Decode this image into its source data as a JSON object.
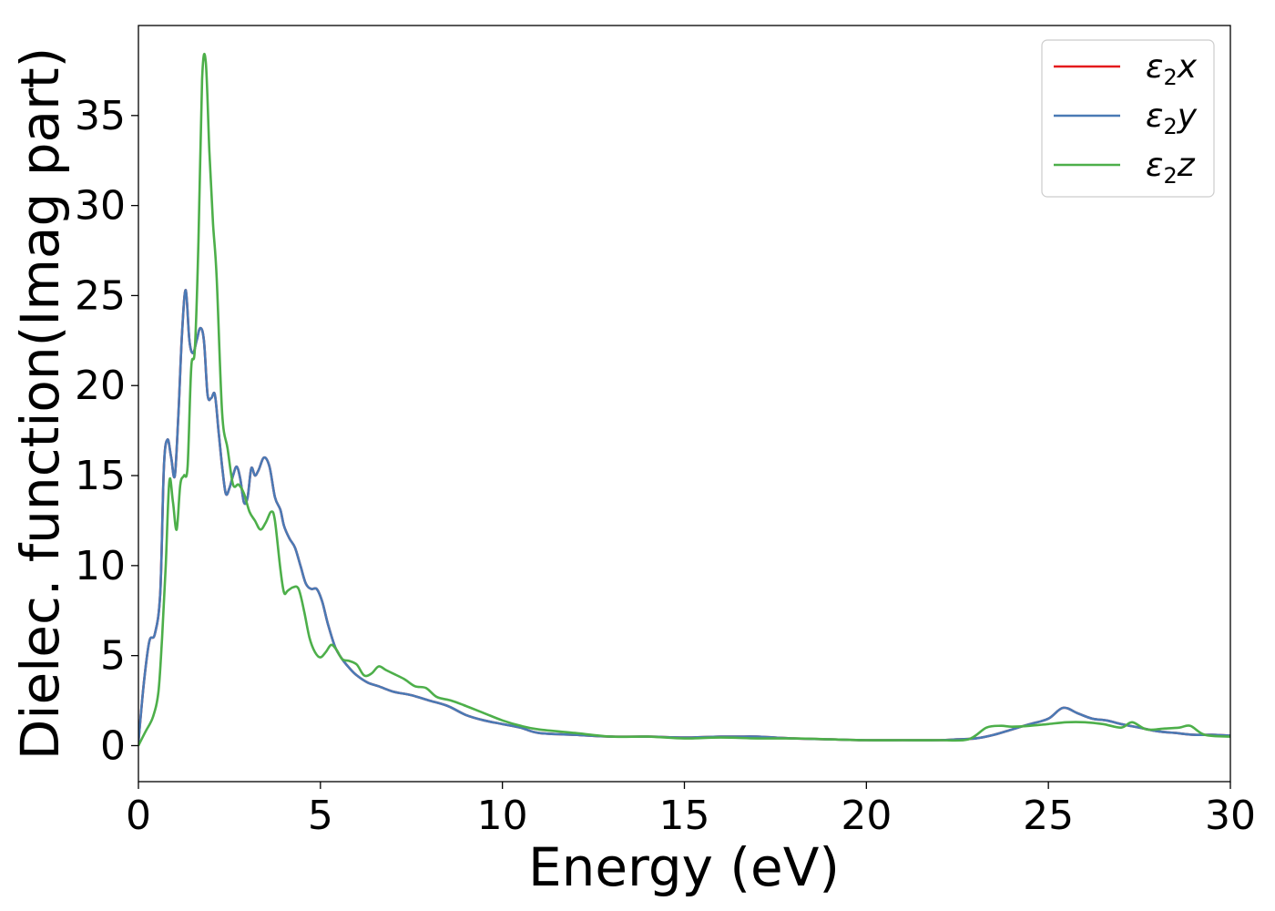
{
  "chart_data": {
    "type": "line",
    "xlabel": "Energy (eV)",
    "ylabel": "Dielec. function(Imag part)",
    "xlim": [
      0,
      30
    ],
    "ylim": [
      -2,
      40
    ],
    "xticks": [
      "0",
      "5",
      "10",
      "15",
      "20",
      "25",
      "30"
    ],
    "yticks": [
      "0",
      "5",
      "10",
      "15",
      "20",
      "25",
      "30",
      "35"
    ],
    "grid": false,
    "legend_position": "top-right",
    "series": [
      {
        "name": "ε2x",
        "base": "ε",
        "sub": "2",
        "var": "x",
        "color": "#e41a1c",
        "x": [
          0,
          0.15,
          0.3,
          0.45,
          0.6,
          0.7,
          0.8,
          0.9,
          1.0,
          1.1,
          1.2,
          1.3,
          1.4,
          1.5,
          1.6,
          1.7,
          1.8,
          1.9,
          2.0,
          2.1,
          2.2,
          2.3,
          2.4,
          2.5,
          2.6,
          2.7,
          2.8,
          2.9,
          3.0,
          3.1,
          3.2,
          3.3,
          3.45,
          3.6,
          3.75,
          3.9,
          4.0,
          4.15,
          4.3,
          4.45,
          4.6,
          4.75,
          4.9,
          5.05,
          5.2,
          5.4,
          5.6,
          5.8,
          6.0,
          6.3,
          6.6,
          7.0,
          7.5,
          8.0,
          8.5,
          9.0,
          9.5,
          10.0,
          10.5,
          11.0,
          12.0,
          13.0,
          14.0,
          15.0,
          16.0,
          16.5,
          17.0,
          18.0,
          19.0,
          20.0,
          21.0,
          22.0,
          22.5,
          23.0,
          23.5,
          24.0,
          24.5,
          25.0,
          25.4,
          25.8,
          26.2,
          26.6,
          27.0,
          27.5,
          28.0,
          28.5,
          29.0,
          29.5,
          30.0
        ],
        "values": [
          0.2,
          3.5,
          5.8,
          6.2,
          8.5,
          15.5,
          17.0,
          16.0,
          15.0,
          18.5,
          23.0,
          25.3,
          22.5,
          21.8,
          22.5,
          23.2,
          22.5,
          19.5,
          19.3,
          19.5,
          17.5,
          15.5,
          14.0,
          14.3,
          15.0,
          15.5,
          14.8,
          13.5,
          13.8,
          15.4,
          15.0,
          15.3,
          16.0,
          15.5,
          13.8,
          13.1,
          12.2,
          11.5,
          11.0,
          10.0,
          9.0,
          8.7,
          8.7,
          8.0,
          6.8,
          5.5,
          4.8,
          4.3,
          3.9,
          3.5,
          3.3,
          3.0,
          2.8,
          2.5,
          2.2,
          1.7,
          1.4,
          1.2,
          1.0,
          0.7,
          0.6,
          0.5,
          0.5,
          0.45,
          0.5,
          0.5,
          0.5,
          0.4,
          0.35,
          0.3,
          0.3,
          0.3,
          0.35,
          0.4,
          0.6,
          0.9,
          1.2,
          1.5,
          2.1,
          1.8,
          1.5,
          1.4,
          1.2,
          1.0,
          0.8,
          0.7,
          0.6,
          0.6,
          0.55
        ]
      },
      {
        "name": "ε2y",
        "base": "ε",
        "sub": "2",
        "var": "y",
        "color": "#4a7ab5",
        "x": [
          0,
          0.15,
          0.3,
          0.45,
          0.6,
          0.7,
          0.8,
          0.9,
          1.0,
          1.1,
          1.2,
          1.3,
          1.4,
          1.5,
          1.6,
          1.7,
          1.8,
          1.9,
          2.0,
          2.1,
          2.2,
          2.3,
          2.4,
          2.5,
          2.6,
          2.7,
          2.8,
          2.9,
          3.0,
          3.1,
          3.2,
          3.3,
          3.45,
          3.6,
          3.75,
          3.9,
          4.0,
          4.15,
          4.3,
          4.45,
          4.6,
          4.75,
          4.9,
          5.05,
          5.2,
          5.4,
          5.6,
          5.8,
          6.0,
          6.3,
          6.6,
          7.0,
          7.5,
          8.0,
          8.5,
          9.0,
          9.5,
          10.0,
          10.5,
          11.0,
          12.0,
          13.0,
          14.0,
          15.0,
          16.0,
          16.5,
          17.0,
          18.0,
          19.0,
          20.0,
          21.0,
          22.0,
          22.5,
          23.0,
          23.5,
          24.0,
          24.5,
          25.0,
          25.4,
          25.8,
          26.2,
          26.6,
          27.0,
          27.5,
          28.0,
          28.5,
          29.0,
          29.5,
          30.0
        ],
        "values": [
          0.2,
          3.5,
          5.8,
          6.2,
          8.5,
          15.5,
          17.0,
          16.0,
          15.0,
          18.5,
          23.0,
          25.3,
          22.5,
          21.8,
          22.5,
          23.2,
          22.5,
          19.5,
          19.3,
          19.5,
          17.5,
          15.5,
          14.0,
          14.3,
          15.0,
          15.5,
          14.8,
          13.5,
          13.8,
          15.4,
          15.0,
          15.3,
          16.0,
          15.5,
          13.8,
          13.1,
          12.2,
          11.5,
          11.0,
          10.0,
          9.0,
          8.7,
          8.7,
          8.0,
          6.8,
          5.5,
          4.8,
          4.3,
          3.9,
          3.5,
          3.3,
          3.0,
          2.8,
          2.5,
          2.2,
          1.7,
          1.4,
          1.2,
          1.0,
          0.7,
          0.6,
          0.5,
          0.5,
          0.45,
          0.5,
          0.5,
          0.5,
          0.4,
          0.35,
          0.3,
          0.3,
          0.3,
          0.35,
          0.4,
          0.6,
          0.9,
          1.2,
          1.5,
          2.1,
          1.8,
          1.5,
          1.4,
          1.2,
          1.0,
          0.8,
          0.7,
          0.6,
          0.6,
          0.55
        ]
      },
      {
        "name": "ε2z",
        "base": "ε",
        "sub": "2",
        "var": "z",
        "color": "#4daf4a",
        "x": [
          0,
          0.2,
          0.4,
          0.55,
          0.65,
          0.75,
          0.85,
          0.95,
          1.05,
          1.15,
          1.25,
          1.35,
          1.45,
          1.55,
          1.65,
          1.75,
          1.85,
          1.95,
          2.05,
          2.15,
          2.3,
          2.45,
          2.6,
          2.75,
          2.9,
          3.05,
          3.2,
          3.35,
          3.5,
          3.65,
          3.75,
          3.9,
          4.0,
          4.1,
          4.25,
          4.4,
          4.55,
          4.7,
          4.85,
          5.0,
          5.15,
          5.3,
          5.45,
          5.6,
          5.8,
          6.0,
          6.2,
          6.4,
          6.6,
          6.8,
          7.0,
          7.3,
          7.6,
          7.9,
          8.2,
          8.6,
          9.0,
          9.5,
          10.0,
          10.5,
          11.0,
          12.0,
          13.0,
          14.0,
          15.0,
          16.0,
          17.0,
          18.0,
          19.0,
          20.0,
          21.0,
          22.0,
          22.8,
          23.3,
          23.7,
          24.0,
          24.5,
          25.0,
          25.5,
          26.0,
          26.5,
          27.0,
          27.3,
          27.7,
          28.2,
          28.6,
          28.9,
          29.3,
          30.0
        ],
        "values": [
          0.0,
          0.8,
          1.6,
          3.0,
          6.0,
          10.0,
          14.7,
          13.5,
          12.0,
          14.5,
          15.0,
          15.5,
          21.0,
          22.0,
          28.0,
          37.0,
          38.0,
          33.0,
          29.0,
          26.0,
          18.5,
          16.5,
          14.5,
          14.5,
          14.0,
          13.0,
          12.5,
          12.0,
          12.4,
          13.0,
          12.5,
          9.8,
          8.5,
          8.6,
          8.8,
          8.7,
          7.5,
          6.0,
          5.2,
          4.9,
          5.2,
          5.6,
          5.3,
          4.8,
          4.7,
          4.5,
          3.9,
          4.0,
          4.4,
          4.2,
          4.0,
          3.7,
          3.3,
          3.2,
          2.7,
          2.5,
          2.2,
          1.8,
          1.4,
          1.1,
          0.9,
          0.7,
          0.5,
          0.5,
          0.4,
          0.45,
          0.4,
          0.4,
          0.35,
          0.3,
          0.3,
          0.3,
          0.35,
          1.0,
          1.1,
          1.05,
          1.1,
          1.2,
          1.3,
          1.3,
          1.2,
          1.0,
          1.3,
          0.9,
          0.95,
          1.0,
          1.1,
          0.6,
          0.5
        ]
      }
    ]
  }
}
